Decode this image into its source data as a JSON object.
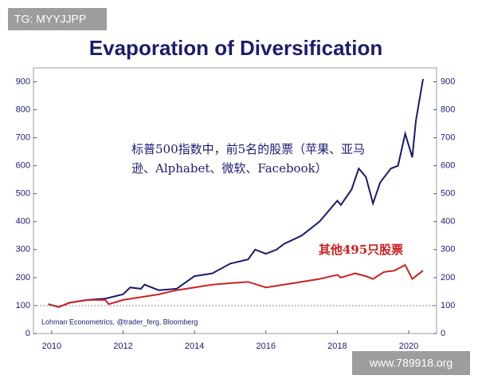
{
  "chart_data": {
    "type": "line",
    "title": "Evaporation of Diversification",
    "watermarks": [
      "TG: MYYJJPP",
      "www.789918.org"
    ],
    "source": "Lohman Econometrics, @trader_ferg, Bloomberg",
    "annotations": [
      {
        "text": "标普500指数中，前5名的股票（苹果、亚马",
        "color": "#1c1c7a"
      },
      {
        "text": "逊、Alphabet、微软、Facebook）",
        "color": "#1c1c7a"
      },
      {
        "text": "其他495只股票",
        "color": "#cc1f1f"
      }
    ],
    "xlim": [
      2009.49,
      2020.78
    ],
    "xticks": [
      2010,
      2012,
      2014,
      2016,
      2018,
      2020
    ],
    "ylim": [
      0,
      950
    ],
    "yticks": [
      0,
      100,
      200,
      300,
      400,
      500,
      600,
      700,
      800,
      900
    ],
    "y2lim": [
      0,
      950
    ],
    "y2ticks": [
      0,
      100,
      200,
      300,
      400,
      500,
      600,
      700,
      800,
      900
    ],
    "hline": 100,
    "series": [
      {
        "color": "#1a1a6e",
        "x": [
          2009.9,
          2010.2,
          2010.5,
          2011,
          2011.5,
          2012,
          2012.2,
          2012.5,
          2012.6,
          2013,
          2013.5,
          2014,
          2014.5,
          2015,
          2015.5,
          2015.7,
          2016,
          2016.3,
          2016.5,
          2017,
          2017.5,
          2018,
          2018.1,
          2018.4,
          2018.6,
          2018.8,
          2019,
          2019.2,
          2019.5,
          2019.7,
          2019.9,
          2020.1,
          2020.2,
          2020.4
        ],
        "values": [
          105,
          95,
          110,
          120,
          125,
          140,
          165,
          160,
          175,
          155,
          160,
          205,
          215,
          250,
          265,
          300,
          285,
          300,
          320,
          350,
          400,
          475,
          460,
          515,
          590,
          560,
          465,
          540,
          590,
          600,
          715,
          630,
          760,
          910
        ]
      },
      {
        "color": "#cc2222",
        "x": [
          2009.9,
          2010.2,
          2010.5,
          2011,
          2011.5,
          2011.6,
          2012,
          2012.5,
          2013,
          2013.5,
          2014,
          2014.5,
          2015,
          2015.5,
          2016,
          2016.5,
          2017,
          2017.5,
          2018,
          2018.1,
          2018.5,
          2018.8,
          2019,
          2019.3,
          2019.6,
          2019.9,
          2020.1,
          2020.2,
          2020.4
        ],
        "values": [
          105,
          95,
          110,
          120,
          120,
          105,
          120,
          130,
          140,
          155,
          165,
          175,
          180,
          185,
          165,
          175,
          185,
          195,
          210,
          200,
          215,
          205,
          195,
          220,
          225,
          245,
          195,
          205,
          225
        ]
      }
    ]
  }
}
